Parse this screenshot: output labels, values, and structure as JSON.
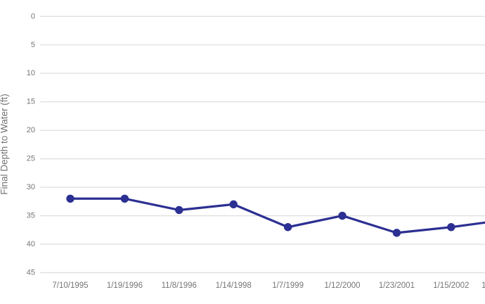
{
  "chart_data": {
    "type": "line",
    "title": "",
    "xlabel": "",
    "ylabel": "Final Depth to Water (ft)",
    "categories": [
      "7/10/1995",
      "1/19/1996",
      "11/8/1996",
      "1/14/1998",
      "1/7/1999",
      "1/12/2000",
      "1/23/2001",
      "1/15/2002"
    ],
    "series": [
      {
        "name": "Final Depth to Water (ft)",
        "values": [
          32,
          32,
          34,
          33,
          37,
          35,
          38,
          37
        ]
      }
    ],
    "y_axis": {
      "min": 0,
      "max": 45,
      "tick_interval": 5,
      "ticks": [
        0,
        5,
        10,
        15,
        20,
        25,
        30,
        35,
        40,
        45
      ],
      "reversed": true
    },
    "grid": "horizontal-only",
    "legend": "none",
    "marker": "filled-circle",
    "line_continues_past_right_edge": true,
    "edge_exit_value": 36.2,
    "next_label_fragment": "1",
    "colors": {
      "line": "#2c3092",
      "marker": "#2c3092",
      "grid": "#e0e0e0",
      "axis_text": "#757575",
      "background": "#ffffff"
    }
  }
}
